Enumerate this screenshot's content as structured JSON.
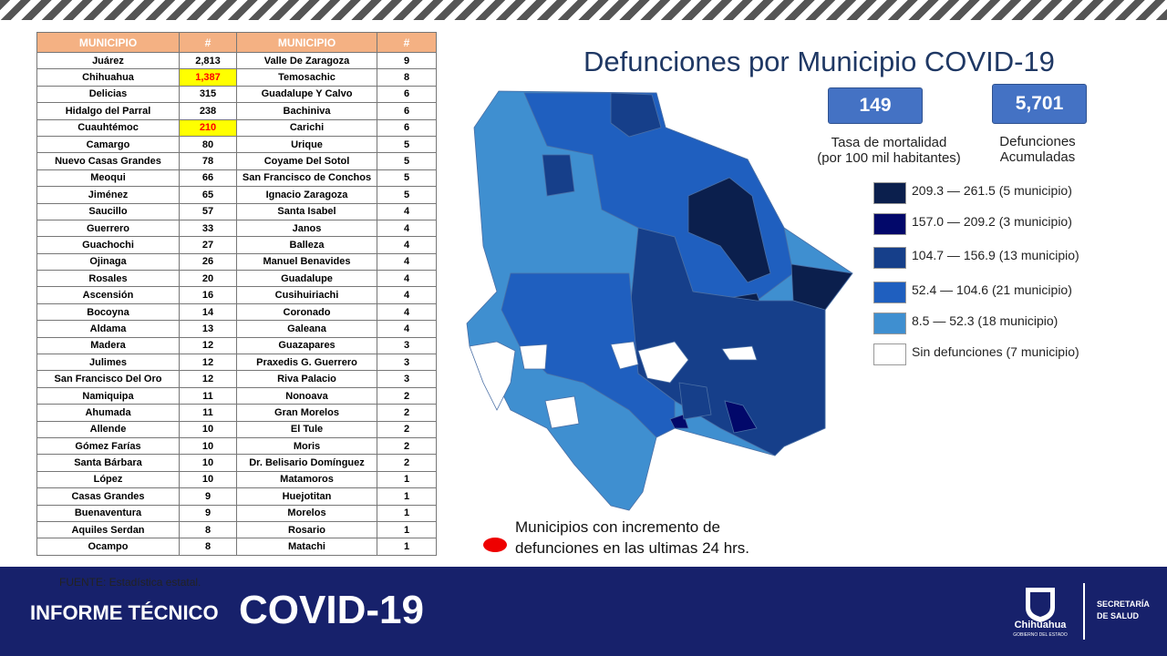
{
  "title": "Defunciones por Municipio COVID-19",
  "table": {
    "header": [
      "MUNICIPIO",
      "#",
      "MUNICIPIO",
      "#"
    ],
    "highlight_rows": [
      1,
      4
    ],
    "highlight_color": "#ffff00",
    "highlight_text_color": "#ff0000",
    "rows": [
      [
        "Juárez",
        "2,813",
        "Valle De Zaragoza",
        "9"
      ],
      [
        "Chihuahua",
        "1,387",
        "Temosachic",
        "8"
      ],
      [
        "Delicias",
        "315",
        "Guadalupe Y Calvo",
        "6"
      ],
      [
        "Hidalgo del Parral",
        "238",
        "Bachiniva",
        "6"
      ],
      [
        "Cuauhtémoc",
        "210",
        "Carichi",
        "6"
      ],
      [
        "Camargo",
        "80",
        "Urique",
        "5"
      ],
      [
        "Nuevo Casas Grandes",
        "78",
        "Coyame Del Sotol",
        "5"
      ],
      [
        "Meoqui",
        "66",
        "San Francisco de Conchos",
        "5"
      ],
      [
        "Jiménez",
        "65",
        "Ignacio Zaragoza",
        "5"
      ],
      [
        "Saucillo",
        "57",
        "Santa Isabel",
        "4"
      ],
      [
        "Guerrero",
        "33",
        "Janos",
        "4"
      ],
      [
        "Guachochi",
        "27",
        "Balleza",
        "4"
      ],
      [
        "Ojinaga",
        "26",
        "Manuel Benavides",
        "4"
      ],
      [
        "Rosales",
        "20",
        "Guadalupe",
        "4"
      ],
      [
        "Ascensión",
        "16",
        "Cusihuiriachi",
        "4"
      ],
      [
        "Bocoyna",
        "14",
        "Coronado",
        "4"
      ],
      [
        "Aldama",
        "13",
        "Galeana",
        "4"
      ],
      [
        "Madera",
        "12",
        "Guazapares",
        "3"
      ],
      [
        "Julimes",
        "12",
        "Praxedis G. Guerrero",
        "3"
      ],
      [
        "San Francisco Del Oro",
        "12",
        "Riva Palacio",
        "3"
      ],
      [
        "Namiquipa",
        "11",
        "Nonoava",
        "2"
      ],
      [
        "Ahumada",
        "11",
        "Gran Morelos",
        "2"
      ],
      [
        "Allende",
        "10",
        "El Tule",
        "2"
      ],
      [
        "Gómez Farías",
        "10",
        "Moris",
        "2"
      ],
      [
        "Santa Bárbara",
        "10",
        "Dr. Belisario Domínguez",
        "2"
      ],
      [
        "López",
        "10",
        "Matamoros",
        "1"
      ],
      [
        "Casas Grandes",
        "9",
        "Huejotitan",
        "1"
      ],
      [
        "Buenaventura",
        "9",
        "Morelos",
        "1"
      ],
      [
        "Aquiles Serdan",
        "8",
        "Rosario",
        "1"
      ],
      [
        "Ocampo",
        "8",
        "Matachi",
        "1"
      ]
    ]
  },
  "stats": [
    {
      "value": "149",
      "label": "Tasa de mortalidad\n(por 100 mil habitantes)"
    },
    {
      "value": "5,701",
      "label": "Defunciones\nAcumuladas"
    }
  ],
  "legend": [
    {
      "label": "209.3 — 261.5 (5 municipio)",
      "color": "#0b1f4d"
    },
    {
      "label": "157.0 — 209.2 (3 municipio)",
      "color": "#02086a"
    },
    {
      "label": "104.7 — 156.9 (13 municipio)",
      "color": "#163f8a"
    },
    {
      "label": "52.4 — 104.6 (21 municipio)",
      "color": "#1f5fbf"
    },
    {
      "label": "8.5 — 52.3 (18 municipio)",
      "color": "#3f8fd0"
    },
    {
      "label": "Sin defunciones (7 municipio)",
      "color": "#ffffff"
    }
  ],
  "note": "Municipios con incremento de\ndefunciones en las ultimas 24 hrs.",
  "footer": {
    "source": "FUENTE: Estadística estatal.",
    "report": "INFORME TÉCNICO",
    "topic": "COVID-19",
    "gov": "Chihuahua",
    "gov_sub": "GOBIERNO DEL ESTADO",
    "dept": [
      "SECRETARÍA",
      "DE SALUD"
    ]
  }
}
